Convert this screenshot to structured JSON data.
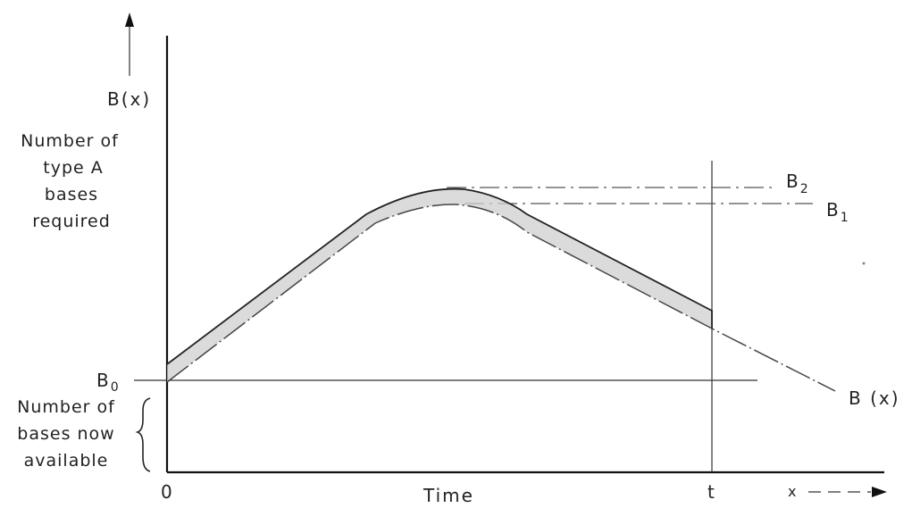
{
  "y_axis": {
    "symbol": "B(x)",
    "description_lines": [
      "Number of",
      "type A",
      "bases",
      "required"
    ]
  },
  "x_axis": {
    "label": "Time",
    "origin_label": "0",
    "t_label": "t",
    "x_label": "x"
  },
  "levels": {
    "b0": "B",
    "b0_sub": "0",
    "b1": "B",
    "b1_sub": "1",
    "b2": "B",
    "b2_sub": "2"
  },
  "curve_label": "B (x)",
  "available_lines": [
    "Number of",
    "bases now",
    "available"
  ]
}
